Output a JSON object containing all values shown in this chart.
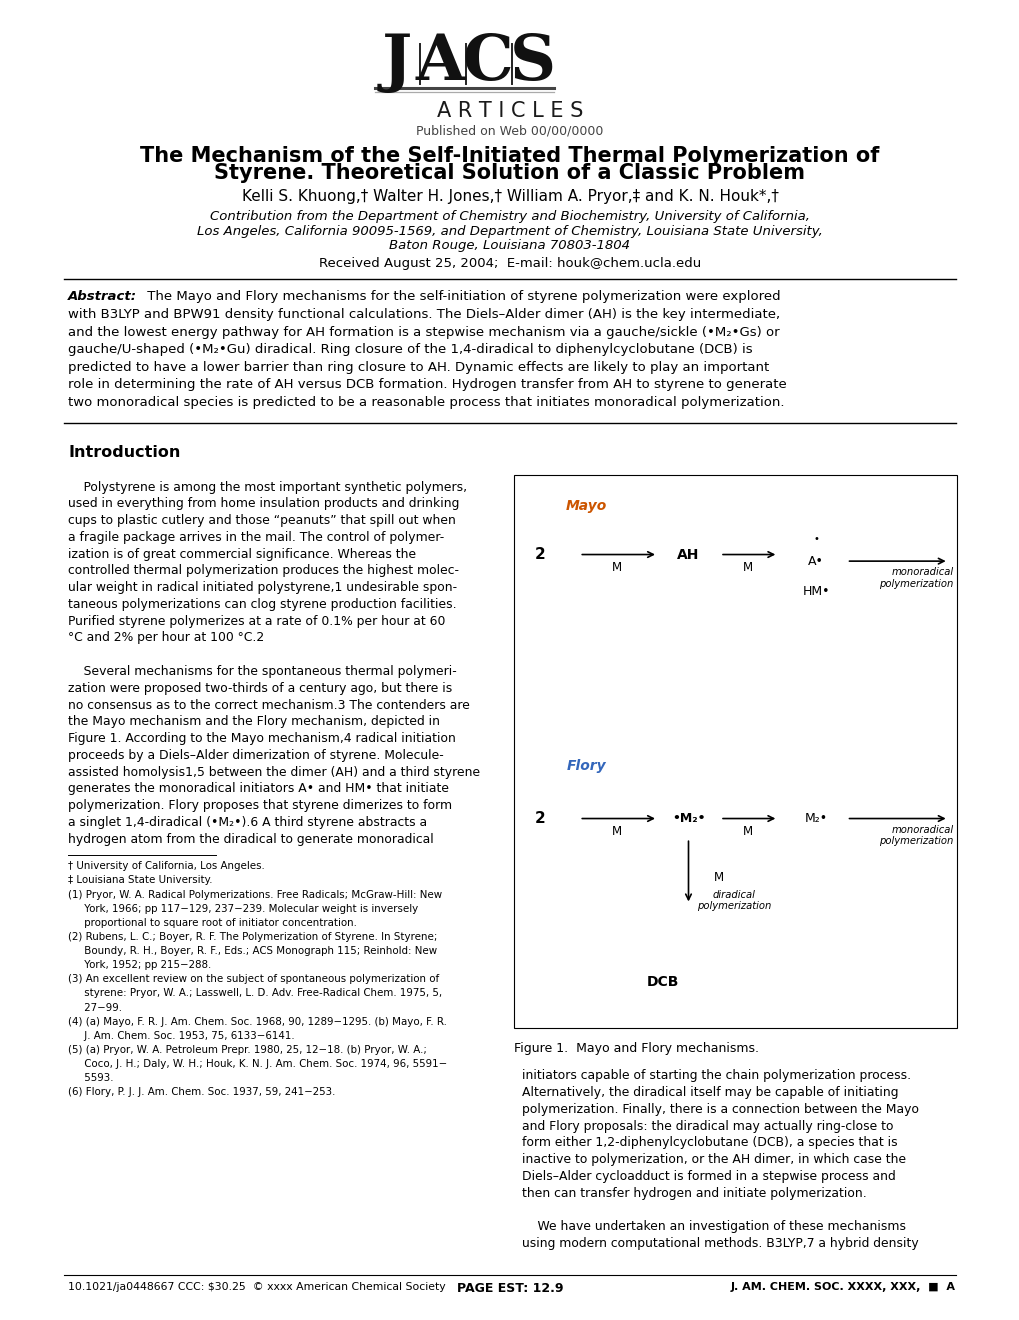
{
  "background_color": "#ffffff",
  "page_width": 10.2,
  "page_height": 13.2,
  "dpi": 100,
  "journal_section": "A R T I C L E S",
  "published_line": "Published on Web 00/00/0000",
  "title_line1": "The Mechanism of the Self-Initiated Thermal Polymerization of",
  "title_line2": "Styrene. Theoretical Solution of a Classic Problem",
  "authors": "Kelli S. Khuong,† Walter H. Jones,† William A. Pryor,‡ and K. N. Houk*,†",
  "affiliation1": "Contribution from the Department of Chemistry and Biochemistry, University of California,",
  "affiliation2": "Los Angeles, California 90095-1569, and Department of Chemistry, Louisiana State University,",
  "affiliation3": "Baton Rouge, Louisiana 70803-1804",
  "received_line": "Received August 25, 2004;  E-mail: houk@chem.ucla.edu",
  "abstract_label": "Abstract:",
  "section_intro": "Introduction",
  "doi_line": "10.1021/ja0448667 CCC: $30.25  © xxxx American Chemical Society",
  "page_est": "PAGE EST: 12.9",
  "journal_ref": "J. AM. CHEM. SOC. XXXX, XXX,  ■  A",
  "figure1_caption": "Figure 1.  Mayo and Flory mechanisms.",
  "abstract_lines": [
    " The Mayo and Flory mechanisms for the self-initiation of styrene polymerization were explored",
    "with B3LYP and BPW91 density functional calculations. The Diels–Alder dimer (AH) is the key intermediate,",
    "and the lowest energy pathway for AH formation is a stepwise mechanism via a gauche/sickle (•M₂•Gs) or",
    "gauche/U-shaped (•M₂•Gu) diradical. Ring closure of the 1,4-diradical to diphenylcyclobutane (DCB) is",
    "predicted to have a lower barrier than ring closure to AH. Dynamic effects are likely to play an important",
    "role in determining the rate of AH versus DCB formation. Hydrogen transfer from AH to styrene to generate",
    "two monoradical species is predicted to be a reasonable process that initiates monoradical polymerization."
  ],
  "intro_col1_lines": [
    "    Polystyrene is among the most important synthetic polymers,",
    "used in everything from home insulation products and drinking",
    "cups to plastic cutlery and those “peanuts” that spill out when",
    "a fragile package arrives in the mail. The control of polymer-",
    "ization is of great commercial significance. Whereas the",
    "controlled thermal polymerization produces the highest molec-",
    "ular weight in radical initiated polystyrene,1 undesirable spon-",
    "taneous polymerizations can clog styrene production facilities.",
    "Purified styrene polymerizes at a rate of 0.1% per hour at 60",
    "°C and 2% per hour at 100 °C.2",
    "",
    "    Several mechanisms for the spontaneous thermal polymeri-",
    "zation were proposed two-thirds of a century ago, but there is",
    "no consensus as to the correct mechanism.3 The contenders are",
    "the Mayo mechanism and the Flory mechanism, depicted in",
    "Figure 1. According to the Mayo mechanism,4 radical initiation",
    "proceeds by a Diels–Alder dimerization of styrene. Molecule-",
    "assisted homolysis1,5 between the dimer (AH) and a third styrene",
    "generates the monoradical initiators A• and HM• that initiate",
    "polymerization. Flory proposes that styrene dimerizes to form",
    "a singlet 1,4-diradical (•M₂•).6 A third styrene abstracts a",
    "hydrogen atom from the diradical to generate monoradical"
  ],
  "footnote_lines": [
    "† University of California, Los Angeles.",
    "‡ Louisiana State University.",
    "(1) Pryor, W. A. Radical Polymerizations. Free Radicals; McGraw-Hill: New",
    "     York, 1966; pp 117−129, 237−239. Molecular weight is inversely",
    "     proportional to square root of initiator concentration.",
    "(2) Rubens, L. C.; Boyer, R. F. The Polymerization of Styrene. In Styrene;",
    "     Boundy, R. H., Boyer, R. F., Eds.; ACS Monograph 115; Reinhold: New",
    "     York, 1952; pp 215−288.",
    "(3) An excellent review on the subject of spontaneous polymerization of",
    "     styrene: Pryor, W. A.; Lasswell, L. D. Adv. Free-Radical Chem. 1975, 5,",
    "     27−99.",
    "(4) (a) Mayo, F. R. J. Am. Chem. Soc. 1968, 90, 1289−1295. (b) Mayo, F. R.",
    "     J. Am. Chem. Soc. 1953, 75, 6133−6141.",
    "(5) (a) Pryor, W. A. Petroleum Prepr. 1980, 25, 12−18. (b) Pryor, W. A.;",
    "     Coco, J. H.; Daly, W. H.; Houk, K. N. J. Am. Chem. Soc. 1974, 96, 5591−",
    "     5593.",
    "(6) Flory, P. J. J. Am. Chem. Soc. 1937, 59, 241−253."
  ],
  "intro_col2_lines": [
    "initiators capable of starting the chain polymerization process.",
    "Alternatively, the diradical itself may be capable of initiating",
    "polymerization. Finally, there is a connection between the Mayo",
    "and Flory proposals: the diradical may actually ring-close to",
    "form either 1,2-diphenylcyclobutane (DCB), a species that is",
    "inactive to polymerization, or the AH dimer, in which case the",
    "Diels–Alder cycloadduct is formed in a stepwise process and",
    "then can transfer hydrogen and initiate polymerization.",
    "",
    "    We have undertaken an investigation of these mechanisms",
    "using modern computational methods. B3LYP,7 a hybrid density"
  ]
}
